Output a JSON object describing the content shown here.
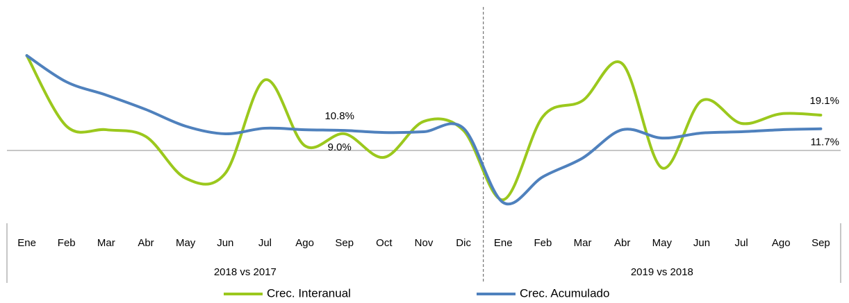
{
  "chart_data": {
    "type": "line",
    "groups": [
      {
        "name": "2018 vs 2017",
        "categories": [
          "Ene",
          "Feb",
          "Mar",
          "Abr",
          "May",
          "Jun",
          "Jul",
          "Ago",
          "Sep",
          "Oct",
          "Nov",
          "Dic"
        ]
      },
      {
        "name": "2019 vs 2018",
        "categories": [
          "Ene",
          "Feb",
          "Mar",
          "Abr",
          "May",
          "Jun",
          "Jul",
          "Ago",
          "Sep"
        ]
      }
    ],
    "ylim": [
      -30,
      55
    ],
    "series": [
      {
        "name": "Crec. Interanual",
        "color": "#9bc81d",
        "values": [
          51.2,
          13.1,
          11.2,
          7.5,
          -15.0,
          -12.3,
          38.1,
          2.6,
          9.0,
          -3.7,
          15.7,
          10.8,
          -26.6,
          18.3,
          26.9,
          46.8,
          -9.4,
          26.9,
          14.6,
          19.8,
          19.1
        ],
        "value_labels": [
          null,
          null,
          null,
          null,
          null,
          null,
          null,
          null,
          "9.0%",
          null,
          null,
          null,
          null,
          null,
          null,
          null,
          null,
          null,
          null,
          null,
          "19.1%"
        ]
      },
      {
        "name": "Crec. Acumulado",
        "color": "#4f81bd",
        "values": [
          51.2,
          37.0,
          29.9,
          22.1,
          13.1,
          9.0,
          12.0,
          11.2,
          10.8,
          9.7,
          10.1,
          12.0,
          -28.1,
          -14.2,
          -4.1,
          11.2,
          6.7,
          9.4,
          10.1,
          11.2,
          11.7
        ],
        "value_labels": [
          null,
          null,
          null,
          null,
          null,
          null,
          null,
          null,
          "10.8%",
          null,
          null,
          null,
          null,
          null,
          null,
          null,
          null,
          null,
          null,
          null,
          "11.7%"
        ]
      }
    ],
    "legend": "bottom"
  }
}
